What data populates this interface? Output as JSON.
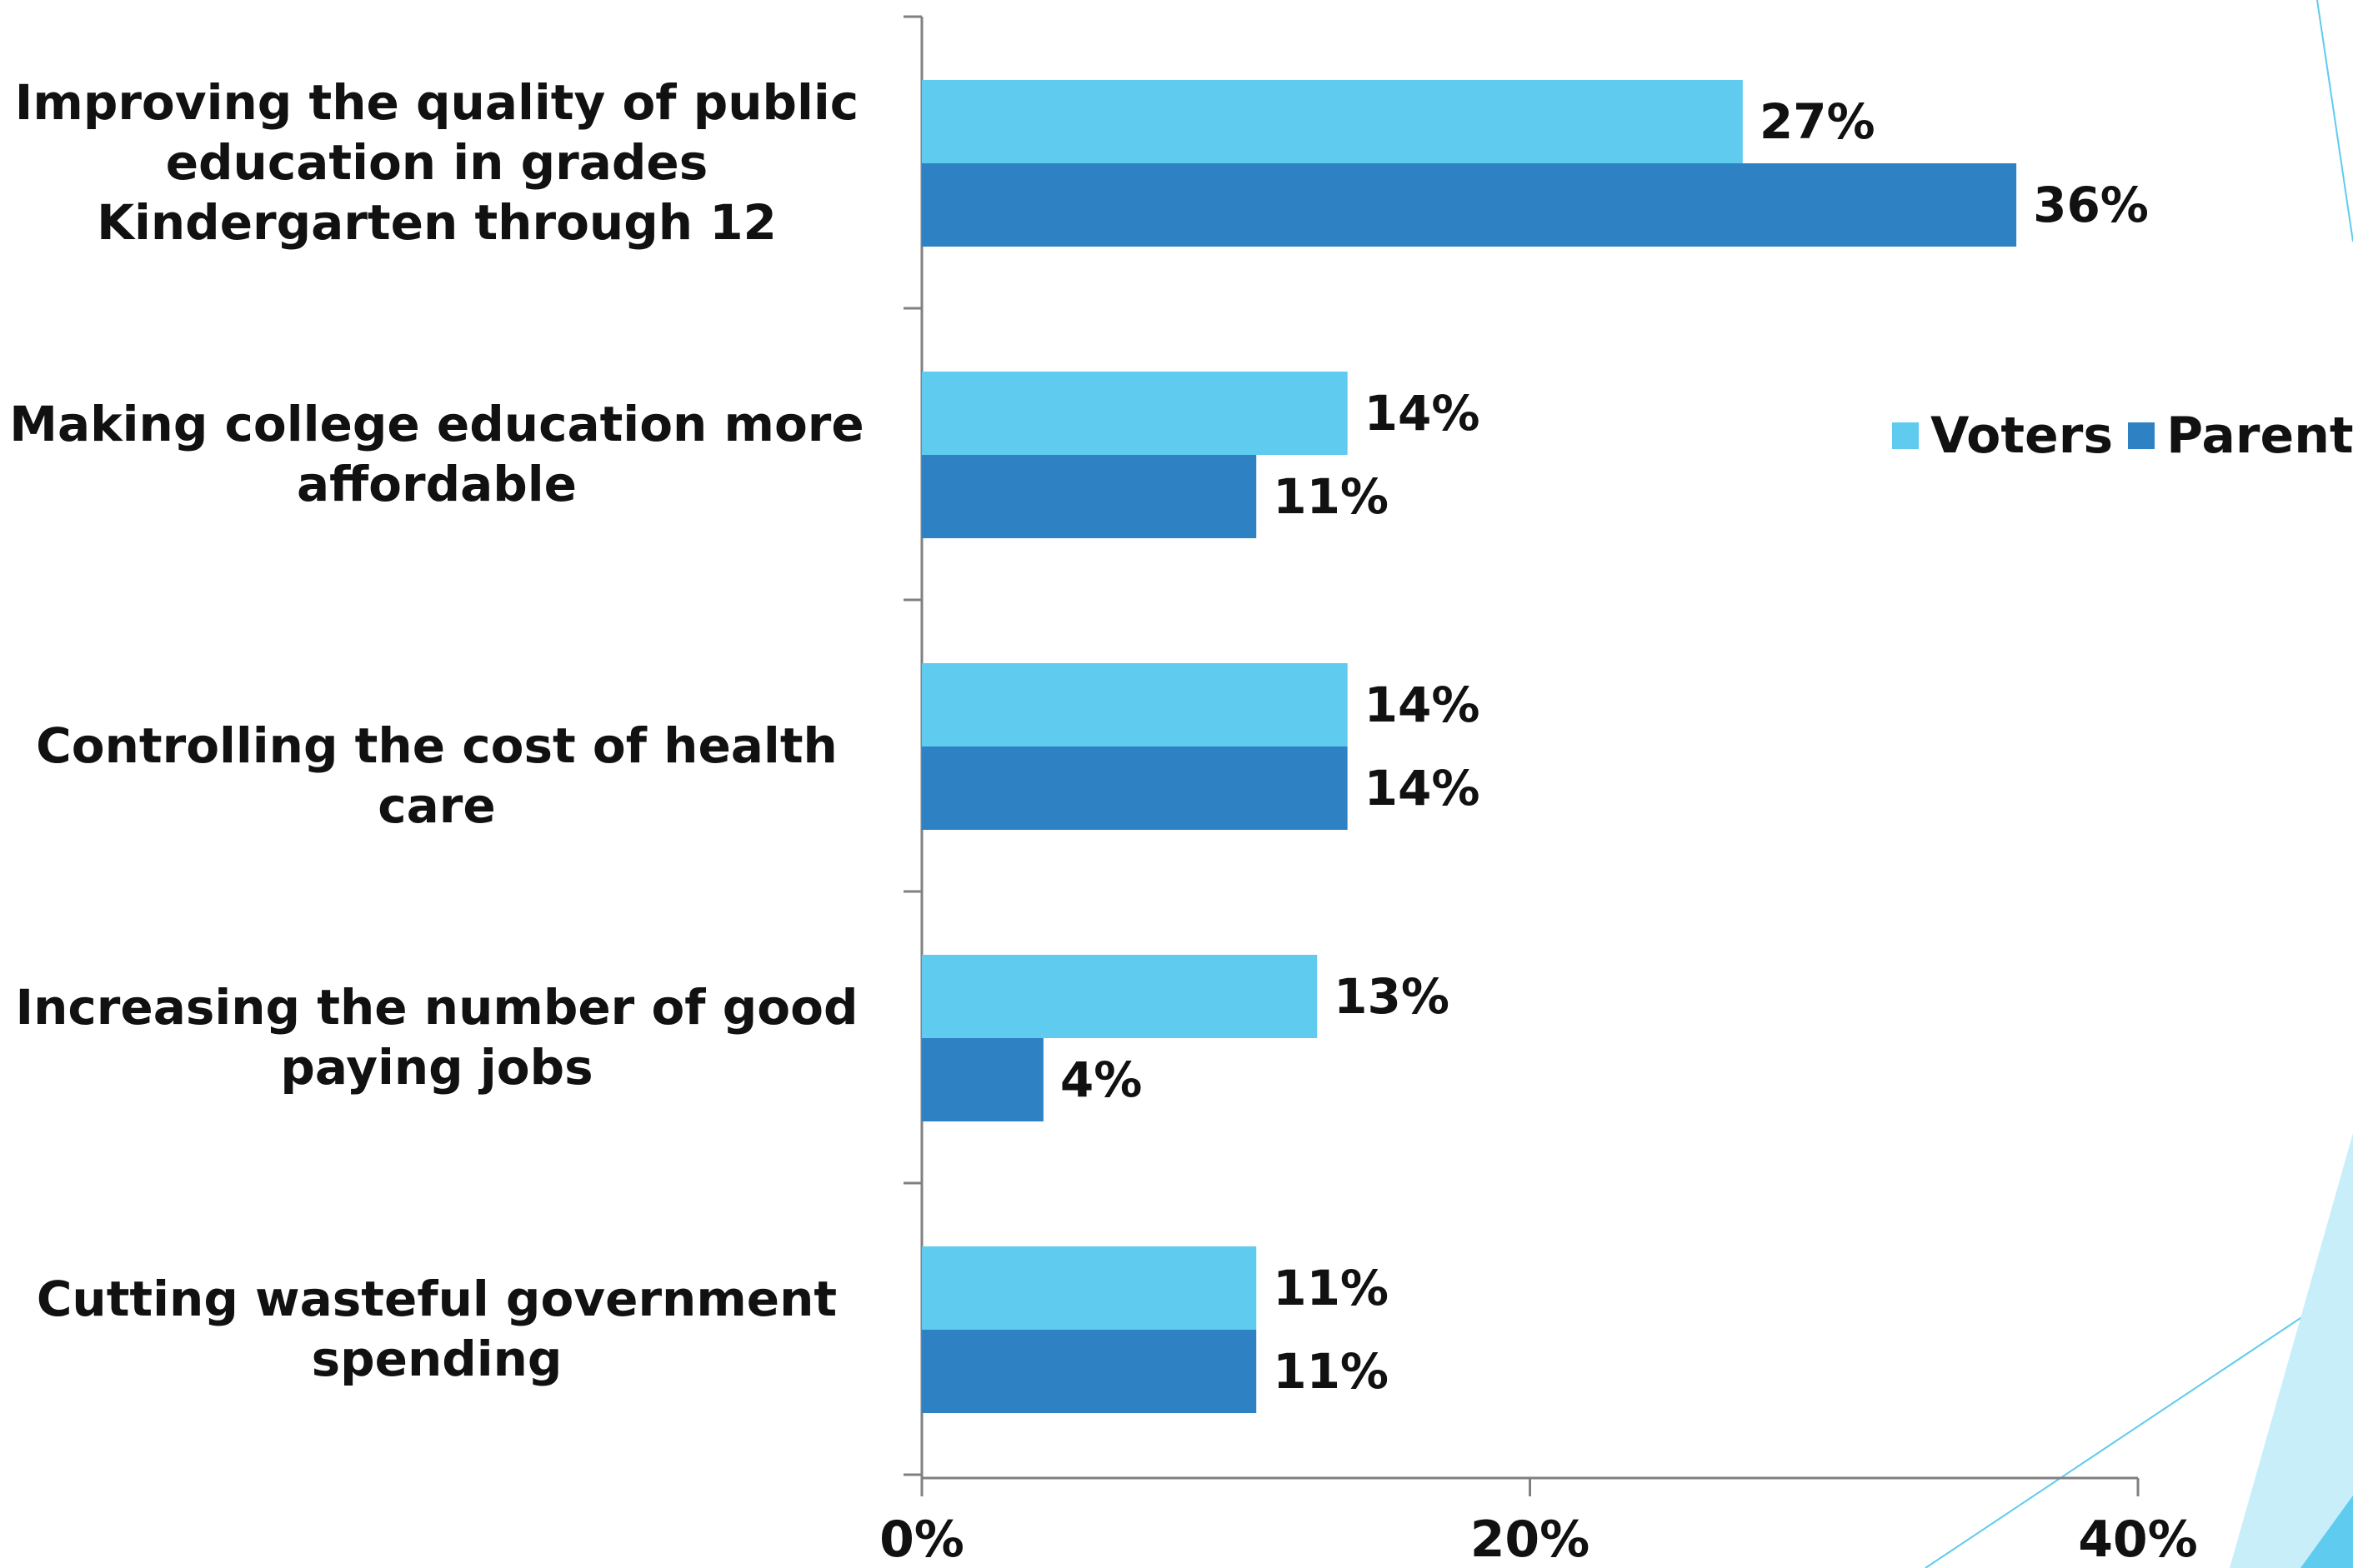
{
  "chart_data": {
    "type": "bar",
    "orientation": "horizontal",
    "categories": [
      "Improving the quality of public education in grades Kindergarten through 12",
      "Making college education more affordable",
      "Controlling the cost of health care",
      "Increasing the number of good paying jobs",
      "Cutting wasteful government spending"
    ],
    "series": [
      {
        "name": "Voters",
        "color": "#5ECBEF",
        "values": [
          27,
          14,
          14,
          13,
          11
        ],
        "labels": [
          "27%",
          "14%",
          "14%",
          "13%",
          "11%"
        ]
      },
      {
        "name": "Parents",
        "color": "#2E82C4",
        "values": [
          36,
          11,
          14,
          4,
          11
        ],
        "labels": [
          "36%",
          "11%",
          "14%",
          "4%",
          "11%"
        ]
      }
    ],
    "xlim": [
      0,
      40
    ],
    "xticks": [
      0,
      20,
      40
    ],
    "xtick_labels": [
      "0%",
      "20%",
      "40%"
    ],
    "legend_position": "right",
    "grid": false
  },
  "decoration": {
    "accent_color": "#5ECBEF"
  }
}
